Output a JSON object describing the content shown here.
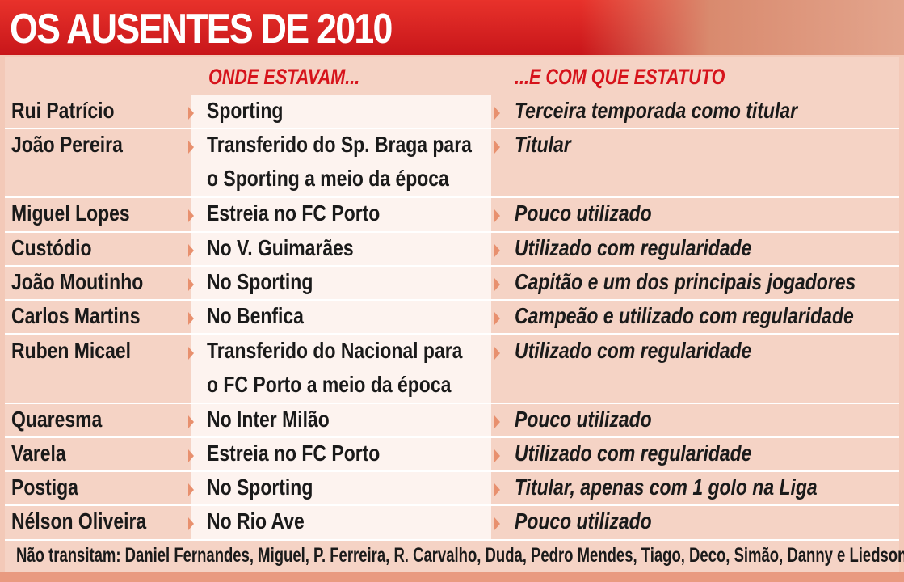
{
  "title": "OS AUSENTES DE 2010",
  "columns": {
    "club": "ONDE ESTAVAM...",
    "status": "...E COM QUE ESTATUTO"
  },
  "rows": [
    {
      "name": "Rui Patrício",
      "club": "Sporting",
      "status": "Terceira temporada como titular"
    },
    {
      "name": "João Pereira",
      "club": "Transferido do Sp. Braga para",
      "club2": "o Sporting a meio da época",
      "status": "Titular"
    },
    {
      "name": "Miguel Lopes",
      "club": "Estreia no FC Porto",
      "status": "Pouco utilizado"
    },
    {
      "name": "Custódio",
      "club": "No V. Guimarães",
      "status": "Utilizado com regularidade"
    },
    {
      "name": "João Moutinho",
      "club": "No Sporting",
      "status": "Capitão e um dos principais jogadores"
    },
    {
      "name": "Carlos Martins",
      "club": "No Benfica",
      "status": "Campeão e utilizado com regularidade"
    },
    {
      "name": "Ruben Micael",
      "club": "Transferido do Nacional para",
      "club2": "o FC Porto a meio da época",
      "status": "Utilizado com regularidade"
    },
    {
      "name": "Quaresma",
      "club": "No Inter Milão",
      "status": "Pouco utilizado"
    },
    {
      "name": "Varela",
      "club": "Estreia no FC Porto",
      "status": "Utilizado com regularidade"
    },
    {
      "name": "Postiga",
      "club": "No Sporting",
      "status": "Titular, apenas com 1 golo na Liga"
    },
    {
      "name": "Nélson Oliveira",
      "club": "No Rio Ave",
      "status": "Pouco utilizado"
    }
  ],
  "footer": "Não transitam: Daniel Fernandes, Miguel, P. Ferreira, R. Carvalho, Duda, Pedro Mendes, Tiago, Deco, Simão, Danny e Liedson",
  "colors": {
    "accent": "#d6131b",
    "banner": "#e8322b",
    "background": "#f5d3c5"
  }
}
